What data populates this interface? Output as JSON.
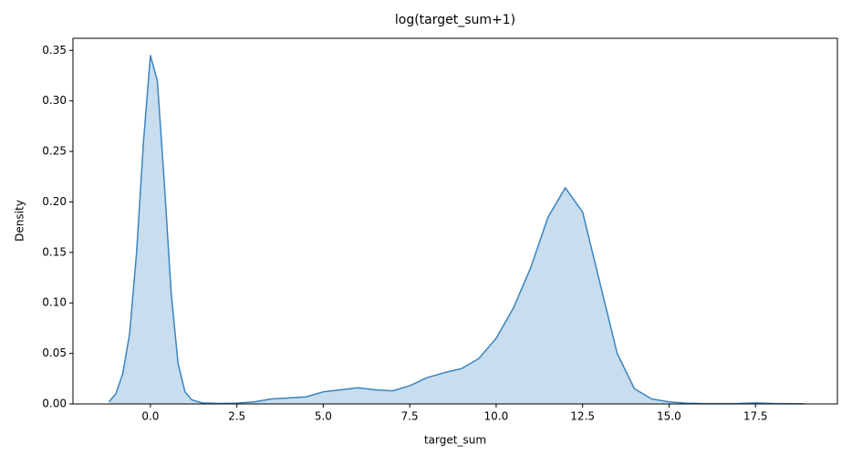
{
  "chart_data": {
    "type": "kde",
    "title": "log(target_sum+1)",
    "x_label": "target_sum",
    "y_label": "Density",
    "color": "#3a84c0",
    "x": [
      -1.2,
      -1.0,
      -0.8,
      -0.6,
      -0.4,
      -0.2,
      0.0,
      0.2,
      0.4,
      0.6,
      0.8,
      1.0,
      1.2,
      1.5,
      2.0,
      2.5,
      3.0,
      3.5,
      4.0,
      4.5,
      5.0,
      5.5,
      6.0,
      6.5,
      7.0,
      7.5,
      8.0,
      8.5,
      9.0,
      9.5,
      10.0,
      10.5,
      11.0,
      11.5,
      12.0,
      12.5,
      13.0,
      13.5,
      14.0,
      14.5,
      15.0,
      15.5,
      16.0,
      17.0,
      17.5,
      18.0,
      18.9
    ],
    "values": [
      0.002,
      0.01,
      0.03,
      0.07,
      0.15,
      0.26,
      0.345,
      0.32,
      0.22,
      0.11,
      0.04,
      0.012,
      0.004,
      0.001,
      0.0005,
      0.0008,
      0.002,
      0.005,
      0.006,
      0.007,
      0.012,
      0.014,
      0.016,
      0.014,
      0.013,
      0.018,
      0.026,
      0.031,
      0.035,
      0.045,
      0.065,
      0.095,
      0.135,
      0.185,
      0.214,
      0.19,
      0.12,
      0.05,
      0.015,
      0.005,
      0.002,
      0.0008,
      0.0003,
      0.0005,
      0.001,
      0.0004,
      0.0001
    ],
    "xlim": [
      -2.24,
      19.87
    ],
    "ylim": [
      0,
      0.362
    ],
    "xticks": [
      {
        "value": 0,
        "label": "0.0"
      },
      2.5,
      {
        "value": 5,
        "label": "5.0"
      },
      7.5,
      {
        "value": 10,
        "label": "10.0"
      },
      12.5,
      {
        "value": 15,
        "label": "15.0"
      },
      17.5
    ],
    "yticks": [
      {
        "value": 0,
        "label": "0.00"
      },
      {
        "value": 0.05,
        "label": "0.05"
      },
      {
        "value": 0.1,
        "label": "0.10"
      },
      {
        "value": 0.15,
        "label": "0.15"
      },
      {
        "value": 0.2,
        "label": "0.20"
      },
      {
        "value": 0.25,
        "label": "0.25"
      },
      {
        "value": 0.3,
        "label": "0.30"
      },
      {
        "value": 0.35,
        "label": "0.35"
      }
    ]
  }
}
